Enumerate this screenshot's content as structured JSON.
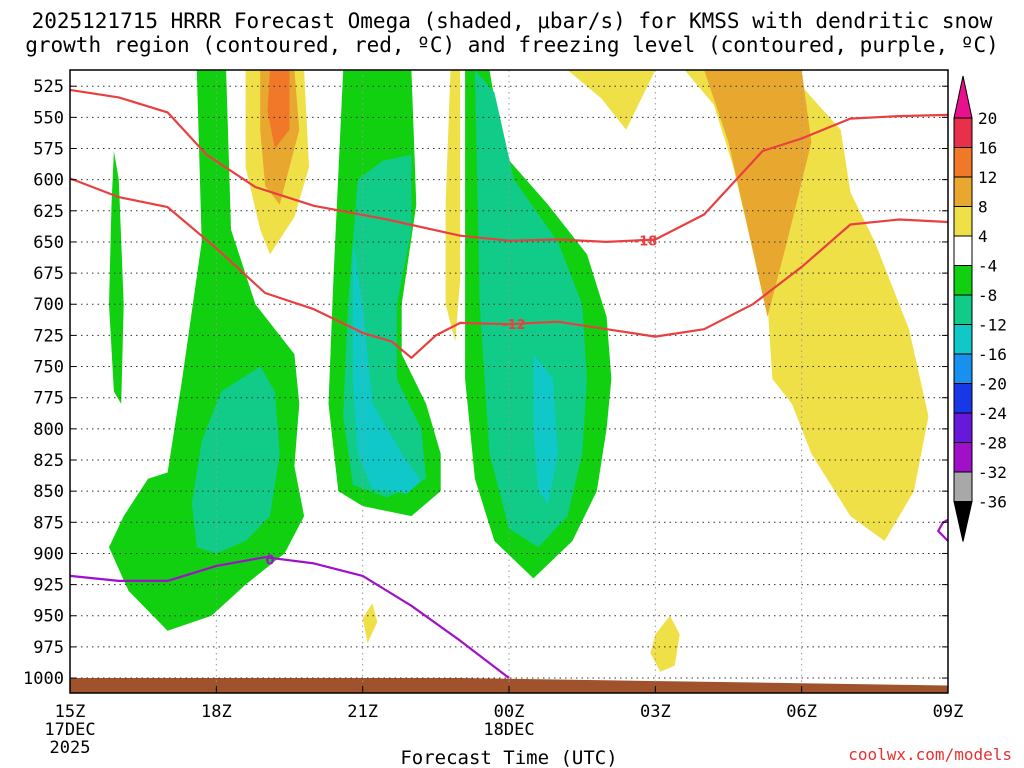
{
  "chart_data": {
    "type": "heatmap",
    "title_line1": "2025121715 HRRR Forecast Omega (shaded, μbar/s) for KMSS with dendritic snow",
    "title_line2": "growth region (contoured, red, ºC) and freezing level (contoured, purple, ºC)",
    "xlabel": "Forecast Time (UTC)",
    "credit": "coolwx.com/models",
    "x_ticks": [
      {
        "hour": 0,
        "label": "15Z",
        "sub1": "17DEC",
        "sub2": "2025"
      },
      {
        "hour": 3,
        "label": "18Z",
        "sub1": "",
        "sub2": ""
      },
      {
        "hour": 6,
        "label": "21Z",
        "sub1": "",
        "sub2": ""
      },
      {
        "hour": 9,
        "label": "00Z",
        "sub1": "18DEC",
        "sub2": ""
      },
      {
        "hour": 12,
        "label": "03Z",
        "sub1": "",
        "sub2": ""
      },
      {
        "hour": 15,
        "label": "06Z",
        "sub1": "",
        "sub2": ""
      },
      {
        "hour": 18,
        "label": "09Z",
        "sub1": "",
        "sub2": ""
      }
    ],
    "x_range_hours": [
      0,
      18
    ],
    "y_range_mb": [
      512,
      1012
    ],
    "y_ticks": [
      525,
      550,
      575,
      600,
      625,
      650,
      675,
      700,
      725,
      750,
      775,
      800,
      825,
      850,
      875,
      900,
      925,
      950,
      975,
      1000
    ],
    "colorbar": {
      "labels": [
        "20",
        "16",
        "12",
        "8",
        "4",
        "-4",
        "-8",
        "-12",
        "-16",
        "-20",
        "-24",
        "-28",
        "-32",
        "-36"
      ],
      "colors": [
        "#e8304a",
        "#f07828",
        "#e8a830",
        "#f0e048",
        "#ffffff",
        "#10d010",
        "#10cc88",
        "#10c8c8",
        "#1890f0",
        "#1838e8",
        "#6818d8",
        "#a010c8",
        "#a8a8a8"
      ],
      "top_arrow_color": "#e8108c",
      "bottom_arrow_color": "#000000"
    },
    "contours": {
      "dgz_red": [
        {
          "level": -18,
          "label": "-18",
          "points": [
            [
              0,
              528
            ],
            [
              1,
              534
            ],
            [
              2,
              546
            ],
            [
              2.8,
              580
            ],
            [
              3.8,
              606
            ],
            [
              5,
              621
            ],
            [
              6.5,
              632
            ],
            [
              8,
              645
            ],
            [
              9,
              649
            ],
            [
              10,
              648
            ],
            [
              11,
              650
            ],
            [
              12,
              648
            ],
            [
              13,
              628
            ],
            [
              14.2,
              577
            ],
            [
              15,
              567
            ],
            [
              16,
              551
            ],
            [
              17,
              549
            ],
            [
              18,
              548
            ]
          ]
        },
        {
          "level": -12,
          "label": "-12",
          "points": [
            [
              0,
              599
            ],
            [
              1,
              614
            ],
            [
              2,
              622
            ],
            [
              3,
              655
            ],
            [
              4,
              691
            ],
            [
              5,
              704
            ],
            [
              6,
              723
            ],
            [
              6.6,
              730
            ],
            [
              7,
              743
            ],
            [
              7.5,
              725
            ],
            [
              8,
              715
            ],
            [
              9,
              716
            ],
            [
              10,
              714
            ],
            [
              11,
              720
            ],
            [
              12,
              726
            ],
            [
              13,
              720
            ],
            [
              14,
              700
            ],
            [
              15,
              670
            ],
            [
              16,
              636
            ],
            [
              17,
              632
            ],
            [
              18,
              634
            ]
          ]
        }
      ],
      "freezing_purple": [
        {
          "level": 0,
          "label": "0",
          "points": [
            [
              0,
              918
            ],
            [
              1,
              922
            ],
            [
              2,
              922
            ],
            [
              3,
              910
            ],
            [
              4,
              903
            ],
            [
              5,
              908
            ],
            [
              6,
              918
            ],
            [
              7,
              942
            ],
            [
              8,
              970
            ],
            [
              9,
              1000
            ]
          ]
        },
        {
          "level": 0,
          "label": "",
          "points": [
            [
              18,
              890
            ],
            [
              17.8,
              882
            ],
            [
              17.9,
              875
            ],
            [
              18,
              873
            ]
          ]
        }
      ]
    },
    "shaded_regions": [
      {
        "value": -6,
        "points": [
          [
            0.9,
            577
          ],
          [
            1,
            600
          ],
          [
            1.1,
            700
          ],
          [
            1.05,
            780
          ],
          [
            0.9,
            770
          ],
          [
            0.8,
            700
          ],
          [
            0.85,
            620
          ]
        ]
      },
      {
        "value": -6,
        "points": [
          [
            2.6,
            512
          ],
          [
            3.2,
            512
          ],
          [
            3.3,
            640
          ],
          [
            3.8,
            700
          ],
          [
            4.6,
            740
          ],
          [
            4.7,
            780
          ],
          [
            4.6,
            830
          ],
          [
            4.8,
            870
          ],
          [
            4.4,
            900
          ],
          [
            3.6,
            925
          ],
          [
            2.9,
            950
          ],
          [
            2,
            962
          ],
          [
            1.2,
            930
          ],
          [
            0.8,
            895
          ],
          [
            1.1,
            870
          ],
          [
            1.6,
            840
          ],
          [
            2,
            835
          ],
          [
            2.3,
            760
          ],
          [
            2.7,
            650
          ]
        ]
      },
      {
        "value": -10,
        "points": [
          [
            2.5,
            860
          ],
          [
            2.7,
            810
          ],
          [
            3.1,
            770
          ],
          [
            3.9,
            750
          ],
          [
            4.2,
            770
          ],
          [
            4.3,
            820
          ],
          [
            4.1,
            870
          ],
          [
            3.6,
            890
          ],
          [
            3,
            900
          ],
          [
            2.6,
            895
          ]
        ]
      },
      {
        "value": -6,
        "points": [
          [
            5.6,
            512
          ],
          [
            7,
            512
          ],
          [
            7.1,
            620
          ],
          [
            6.8,
            700
          ],
          [
            6.8,
            740
          ],
          [
            7.3,
            780
          ],
          [
            7.6,
            820
          ],
          [
            7.6,
            850
          ],
          [
            7,
            870
          ],
          [
            6,
            862
          ],
          [
            5.5,
            850
          ],
          [
            5.3,
            780
          ],
          [
            5.4,
            680
          ]
        ]
      },
      {
        "value": -10,
        "points": [
          [
            5.9,
            600
          ],
          [
            6.4,
            585
          ],
          [
            7,
            580
          ],
          [
            7,
            640
          ],
          [
            6.7,
            700
          ],
          [
            6.7,
            760
          ],
          [
            7.2,
            800
          ],
          [
            7.3,
            840
          ],
          [
            6.5,
            855
          ],
          [
            5.8,
            845
          ],
          [
            5.6,
            790
          ],
          [
            5.7,
            700
          ]
        ]
      },
      {
        "value": -14,
        "points": [
          [
            5.8,
            650
          ],
          [
            6,
            700
          ],
          [
            6.2,
            780
          ],
          [
            6.8,
            820
          ],
          [
            7.2,
            842
          ],
          [
            6.9,
            852
          ],
          [
            6.2,
            848
          ],
          [
            5.9,
            820
          ],
          [
            5.8,
            760
          ]
        ]
      },
      {
        "value": -6,
        "points": [
          [
            8.1,
            512
          ],
          [
            8.6,
            512
          ],
          [
            8.9,
            580
          ],
          [
            9.8,
            620
          ],
          [
            10.6,
            660
          ],
          [
            11,
            710
          ],
          [
            11.1,
            760
          ],
          [
            11,
            800
          ],
          [
            10.8,
            850
          ],
          [
            10.3,
            890
          ],
          [
            9.5,
            920
          ],
          [
            8.7,
            890
          ],
          [
            8.3,
            840
          ],
          [
            8.1,
            760
          ],
          [
            8.1,
            650
          ]
        ]
      },
      {
        "value": -10,
        "points": [
          [
            8.3,
            512
          ],
          [
            8.7,
            530
          ],
          [
            9.1,
            600
          ],
          [
            10,
            650
          ],
          [
            10.5,
            700
          ],
          [
            10.6,
            760
          ],
          [
            10.5,
            820
          ],
          [
            10.2,
            870
          ],
          [
            9.6,
            895
          ],
          [
            9,
            880
          ],
          [
            8.6,
            820
          ],
          [
            8.4,
            700
          ]
        ]
      },
      {
        "value": -14,
        "points": [
          [
            9.5,
            740
          ],
          [
            9.9,
            760
          ],
          [
            10,
            820
          ],
          [
            9.8,
            860
          ],
          [
            9.6,
            850
          ],
          [
            9.5,
            800
          ]
        ]
      },
      {
        "value": 6,
        "points": [
          [
            3.6,
            512
          ],
          [
            4.8,
            512
          ],
          [
            4.9,
            590
          ],
          [
            4.6,
            630
          ],
          [
            4.1,
            660
          ],
          [
            3.9,
            640
          ],
          [
            3.6,
            590
          ]
        ]
      },
      {
        "value": 10,
        "points": [
          [
            3.9,
            512
          ],
          [
            4.6,
            512
          ],
          [
            4.7,
            560
          ],
          [
            4.3,
            620
          ],
          [
            4,
            605
          ],
          [
            3.9,
            560
          ]
        ]
      },
      {
        "value": 14,
        "points": [
          [
            4.1,
            512
          ],
          [
            4.5,
            512
          ],
          [
            4.5,
            560
          ],
          [
            4.2,
            575
          ],
          [
            4.05,
            545
          ]
        ]
      },
      {
        "value": 6,
        "points": [
          [
            7.8,
            512
          ],
          [
            8.0,
            512
          ],
          [
            8.0,
            680
          ],
          [
            7.9,
            730
          ],
          [
            7.7,
            700
          ],
          [
            7.7,
            620
          ]
        ]
      },
      {
        "value": 6,
        "points": [
          [
            10.2,
            512
          ],
          [
            12,
            512
          ],
          [
            11.4,
            560
          ],
          [
            10.9,
            535
          ]
        ]
      },
      {
        "value": 6,
        "points": [
          [
            12.6,
            512
          ],
          [
            14.7,
            512
          ],
          [
            15.8,
            560
          ],
          [
            16,
            610
          ],
          [
            16.5,
            650
          ],
          [
            17.2,
            720
          ],
          [
            17.6,
            790
          ],
          [
            17.3,
            850
          ],
          [
            16.7,
            890
          ],
          [
            16,
            870
          ],
          [
            15.2,
            820
          ],
          [
            14.8,
            780
          ],
          [
            14.4,
            760
          ],
          [
            14.3,
            700
          ],
          [
            13.9,
            640
          ],
          [
            13.6,
            590
          ],
          [
            13.2,
            540
          ]
        ]
      },
      {
        "value": 10,
        "points": [
          [
            13,
            512
          ],
          [
            15,
            512
          ],
          [
            15.2,
            570
          ],
          [
            14.7,
            650
          ],
          [
            14.3,
            710
          ],
          [
            13.9,
            640
          ],
          [
            13.5,
            570
          ]
        ]
      },
      {
        "value": 6,
        "points": [
          [
            6,
            952
          ],
          [
            6.2,
            940
          ],
          [
            6.3,
            955
          ],
          [
            6.1,
            972
          ]
        ]
      },
      {
        "value": 6,
        "points": [
          [
            12,
            965
          ],
          [
            12.3,
            950
          ],
          [
            12.5,
            965
          ],
          [
            12.4,
            990
          ],
          [
            12.1,
            995
          ],
          [
            11.9,
            980
          ]
        ]
      }
    ],
    "terrain_color": "#a0522d"
  }
}
